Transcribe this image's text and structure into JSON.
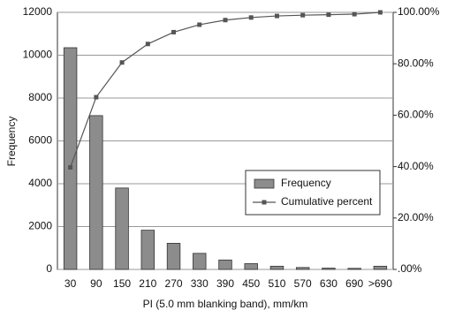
{
  "chart_data": {
    "type": "bar-line",
    "x_label": "PI (5.0 mm blanking band), mm/km",
    "y_label": "Frequency",
    "categories": [
      "30",
      "90",
      "150",
      "210",
      "270",
      "330",
      "390",
      "450",
      "510",
      "570",
      "630",
      "690",
      ">690"
    ],
    "series": [
      {
        "name": "Frequency",
        "type": "bar",
        "color": "#8c8c8c",
        "values": [
          10350,
          7180,
          3800,
          1830,
          1220,
          750,
          440,
          270,
          150,
          90,
          60,
          50,
          150
        ]
      },
      {
        "name": "Cumulative percent",
        "type": "line",
        "axis": "y2",
        "color": "#555555",
        "values": [
          39.7,
          67,
          80.5,
          87.7,
          92.3,
          95.2,
          97,
          98,
          98.6,
          98.9,
          99.1,
          99.3,
          100
        ]
      }
    ],
    "ylim": [
      0,
      12000
    ],
    "yticks": [
      0,
      2000,
      4000,
      6000,
      8000,
      10000,
      12000
    ],
    "y2lim": [
      0,
      100
    ],
    "y2ticks": [
      {
        "value": 0,
        "label": ".00%"
      },
      {
        "value": 20,
        "label": "20.00%"
      },
      {
        "value": 40,
        "label": "40.00%"
      },
      {
        "value": 60,
        "label": "60.00%"
      },
      {
        "value": 80,
        "label": "80.00%"
      },
      {
        "value": 100,
        "label": "100.00%"
      }
    ],
    "grid": true,
    "legend": "center-right"
  }
}
